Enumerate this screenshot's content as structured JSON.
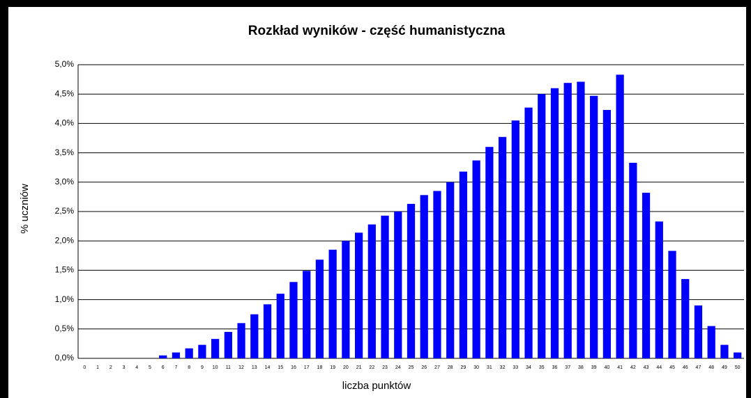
{
  "chart_data": {
    "type": "bar",
    "title": "Rozkład wyników - część humanistyczna",
    "x_label": "liczba punktów",
    "y_label": "% uczniów",
    "categories": [
      "0",
      "1",
      "2",
      "3",
      "4",
      "5",
      "6",
      "7",
      "8",
      "9",
      "10",
      "11",
      "12",
      "13",
      "14",
      "15",
      "16",
      "17",
      "18",
      "19",
      "20",
      "21",
      "22",
      "23",
      "24",
      "25",
      "26",
      "27",
      "28",
      "29",
      "30",
      "31",
      "32",
      "33",
      "34",
      "35",
      "36",
      "37",
      "38",
      "39",
      "40",
      "41",
      "42",
      "43",
      "44",
      "45",
      "46",
      "47",
      "48",
      "49",
      "50"
    ],
    "values": [
      0,
      0,
      0,
      0,
      0,
      0,
      0.05,
      0.1,
      0.17,
      0.23,
      0.33,
      0.45,
      0.6,
      0.75,
      0.92,
      1.1,
      1.3,
      1.49,
      1.68,
      1.85,
      2.0,
      2.14,
      2.28,
      2.43,
      2.5,
      2.63,
      2.78,
      2.85,
      3.0,
      3.18,
      3.37,
      3.6,
      3.77,
      4.05,
      4.27,
      4.5,
      4.6,
      4.69,
      4.71,
      4.47,
      4.23,
      4.83,
      3.33,
      2.82,
      2.33,
      1.83,
      1.35,
      0.9,
      0.55,
      0.23,
      0.1
    ],
    "color": "#0000ff",
    "ylim": [
      0,
      5
    ],
    "yticks": [
      {
        "value": 0,
        "label": "0,0%"
      },
      {
        "value": 0.5,
        "label": "0,5%"
      },
      {
        "value": 1,
        "label": "1,0%"
      },
      {
        "value": 1.5,
        "label": "1,5%"
      },
      {
        "value": 2,
        "label": "2,0%"
      },
      {
        "value": 2.5,
        "label": "2,5%"
      },
      {
        "value": 3,
        "label": "3,0%"
      },
      {
        "value": 3.5,
        "label": "3,5%"
      },
      {
        "value": 4,
        "label": "4,0%"
      },
      {
        "value": 4.5,
        "label": "4,5%"
      },
      {
        "value": 5,
        "label": "5,0%"
      }
    ],
    "grid": true
  }
}
